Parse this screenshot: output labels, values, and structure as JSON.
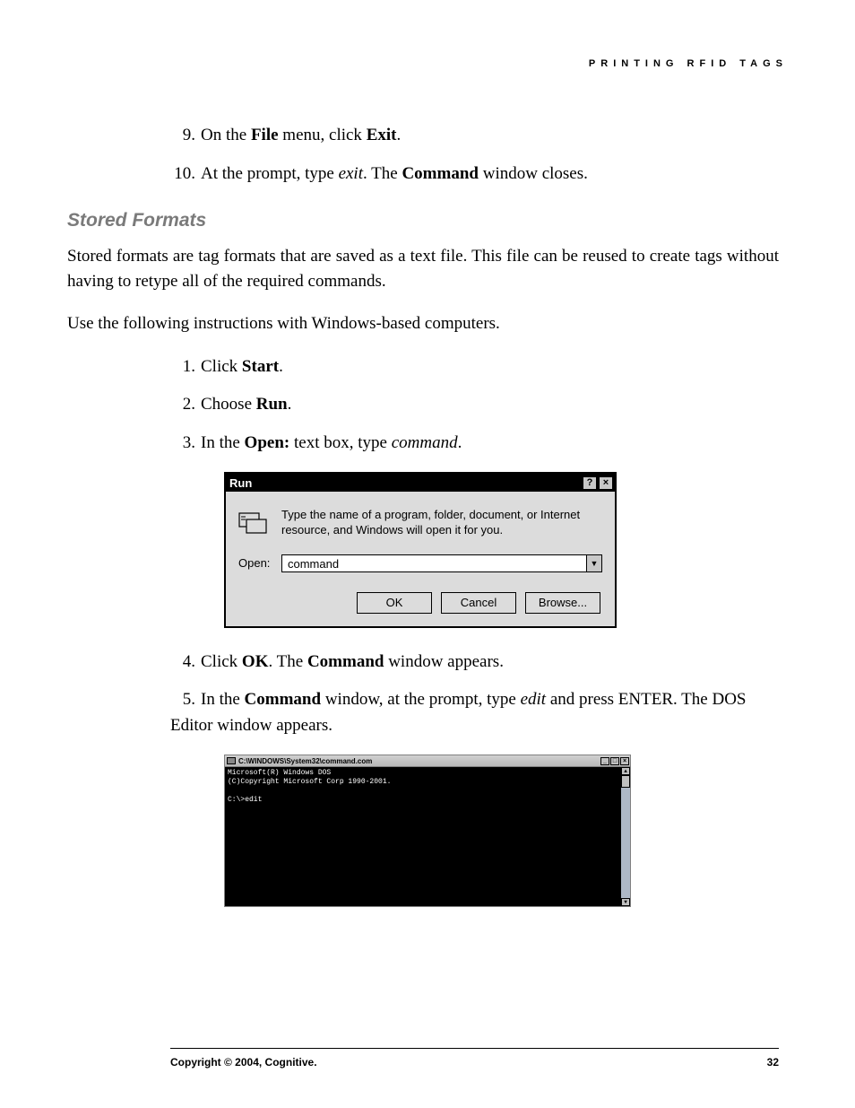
{
  "header": {
    "text": "PRINTING RFID TAGS"
  },
  "steps_a": [
    {
      "num": "9.",
      "html": "On the <b>File</b> menu, click <b>Exit</b>."
    },
    {
      "num": "10.",
      "html": "At the prompt, type <i>exit</i>. The <b>Command</b> window closes."
    }
  ],
  "section_title": "Stored Formats",
  "para1": "Stored formats are tag formats that are saved as a text file. This file can be reused to create tags without having to retype all of the required commands.",
  "para2": "Use the following instructions with Windows-based computers.",
  "steps_b": [
    {
      "num": "1.",
      "html": "Click <b>Start</b>."
    },
    {
      "num": "2.",
      "html": "Choose <b>Run</b>."
    },
    {
      "num": "3.",
      "html": "In the <b>Open:</b> text box, type <i>command</i>."
    }
  ],
  "run_dialog": {
    "title": "Run",
    "help_btn": "?",
    "close_btn": "×",
    "description": "Type the name of a program, folder, document, or Internet resource, and Windows will open it for you.",
    "open_label": "Open:",
    "input_value": "command",
    "dropdown_glyph": "▼",
    "buttons": {
      "ok": "OK",
      "cancel": "Cancel",
      "browse": "Browse..."
    },
    "colors": {
      "bg": "#dcdcdc",
      "titlebar_bg": "#000000",
      "titlebar_fg": "#ffffff",
      "border": "#000000",
      "btn_bg": "#c8c8c8",
      "input_bg": "#ffffff"
    }
  },
  "steps_c": [
    {
      "num": "4.",
      "html": "Click <b>OK</b>. The <b>Command</b> window appears."
    },
    {
      "num": "5.",
      "html": "In the <b>Command</b> window, at the prompt, type <i>edit</i> and press ENTER. The DOS Editor window appears."
    }
  ],
  "cmd_window": {
    "title": "C:\\WINDOWS\\System32\\command.com",
    "min_btn": "_",
    "max_btn": "□",
    "close_btn": "×",
    "lines": [
      "Microsoft(R) Windows DOS",
      "(C)Copyright Microsoft Corp 1990-2001.",
      "",
      "C:\\>edit"
    ],
    "scroll": {
      "up": "▲",
      "down": "▼"
    },
    "colors": {
      "body_bg": "#000000",
      "body_fg": "#ffffff",
      "scroll_bg": "#aeb8c6",
      "titlebar_bg": "#d0d0d0",
      "border": "#808080"
    }
  },
  "footer": {
    "copyright": "Copyright © 2004, Cognitive.",
    "page": "32"
  }
}
